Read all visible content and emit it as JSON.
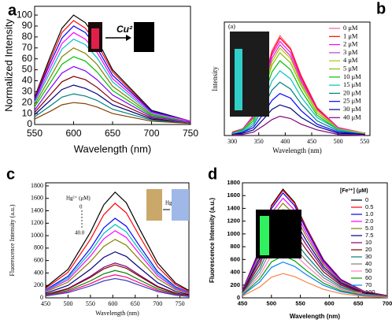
{
  "chart_data": [
    {
      "type": "line",
      "title": "a",
      "x_label": "Wavelength (nm)",
      "y_label": "Normalized Intensity",
      "annotations": [
        "Cu²⁺"
      ],
      "x": [
        550,
        570,
        585,
        600,
        615,
        630,
        650,
        700,
        750
      ],
      "xlim": [
        550,
        750
      ],
      "xticks": [
        550,
        600,
        650,
        700,
        750
      ],
      "ylim": [
        0,
        108
      ],
      "yticks": [
        0,
        10,
        20,
        30,
        40,
        50,
        60,
        70,
        80,
        90,
        100
      ],
      "series": [
        {
          "color": "#000000",
          "values": [
            25,
            62,
            88,
            100,
            93,
            78,
            50,
            13,
            3
          ]
        },
        {
          "color": "#ff0000",
          "values": [
            24,
            59,
            84,
            95,
            88,
            74,
            48,
            12,
            3
          ]
        },
        {
          "color": "#0000ff",
          "values": [
            23,
            56,
            79,
            90,
            84,
            70,
            45,
            12,
            3
          ]
        },
        {
          "color": "#ff00ff",
          "values": [
            21,
            52,
            74,
            84,
            78,
            66,
            42,
            11,
            3
          ]
        },
        {
          "color": "#00c0c0",
          "values": [
            20,
            48,
            69,
            78,
            73,
            61,
            39,
            10,
            2
          ]
        },
        {
          "color": "#808000",
          "values": [
            18,
            43,
            62,
            70,
            65,
            55,
            35,
            9,
            2
          ]
        },
        {
          "color": "#00c000",
          "values": [
            16,
            38,
            55,
            62,
            58,
            48,
            31,
            8,
            2
          ]
        },
        {
          "color": "#8000ff",
          "values": [
            13,
            33,
            47,
            53,
            49,
            41,
            27,
            7,
            2
          ]
        },
        {
          "color": "#800000",
          "values": [
            11,
            27,
            39,
            44,
            41,
            34,
            22,
            6,
            1
          ]
        },
        {
          "color": "#000080",
          "values": [
            9,
            22,
            32,
            36,
            33,
            28,
            18,
            5,
            1
          ]
        },
        {
          "color": "#008080",
          "values": [
            7,
            17,
            25,
            28,
            26,
            22,
            14,
            4,
            1
          ]
        },
        {
          "color": "#804000",
          "values": [
            5,
            12,
            18,
            20,
            19,
            16,
            10,
            3,
            1
          ]
        }
      ]
    },
    {
      "type": "line",
      "title": "b",
      "x_label": "Wavelength (nm)",
      "y_label": "Intensity",
      "annotations": [
        "(a)"
      ],
      "x": [
        300,
        320,
        340,
        360,
        375,
        390,
        410,
        430,
        460,
        500,
        550
      ],
      "xlim": [
        285,
        560
      ],
      "xticks": [
        300,
        350,
        400,
        450,
        500,
        550
      ],
      "ylim": [
        0,
        100
      ],
      "series": [
        {
          "name": "0 μM",
          "color": "#ff6080",
          "values": [
            3,
            6,
            18,
            48,
            75,
            88,
            77,
            53,
            25,
            7,
            2
          ]
        },
        {
          "name": "1 μM",
          "color": "#ff0000",
          "values": [
            3,
            6,
            17,
            47,
            73,
            86,
            76,
            52,
            24,
            7,
            2
          ]
        },
        {
          "name": "2 μM",
          "color": "#ff00ff",
          "values": [
            2,
            6,
            17,
            46,
            71,
            83,
            73,
            50,
            23,
            7,
            2
          ]
        },
        {
          "name": "3 μM",
          "color": "#c040c0",
          "values": [
            2,
            6,
            16,
            44,
            68,
            80,
            70,
            48,
            22,
            6,
            2
          ]
        },
        {
          "name": "4 μM",
          "color": "#c0c000",
          "values": [
            2,
            5,
            15,
            42,
            65,
            77,
            68,
            46,
            22,
            6,
            2
          ]
        },
        {
          "name": "5 μM",
          "color": "#80c000",
          "values": [
            2,
            5,
            15,
            40,
            62,
            73,
            64,
            44,
            20,
            6,
            1
          ]
        },
        {
          "name": "10 μM",
          "color": "#00c000",
          "values": [
            2,
            5,
            13,
            36,
            56,
            66,
            58,
            40,
            18,
            5,
            1
          ]
        },
        {
          "name": "15 μM",
          "color": "#00c0c0",
          "values": [
            2,
            4,
            11,
            31,
            48,
            57,
            50,
            34,
            16,
            5,
            1
          ]
        },
        {
          "name": "20 μM",
          "color": "#008080",
          "values": [
            1,
            3,
            9,
            26,
            40,
            47,
            41,
            28,
            13,
            4,
            1
          ]
        },
        {
          "name": "25 μM",
          "color": "#0000ff",
          "values": [
            1,
            3,
            7,
            20,
            31,
            37,
            33,
            22,
            10,
            3,
            1
          ]
        },
        {
          "name": "30 μM",
          "color": "#000080",
          "values": [
            1,
            2,
            5,
            15,
            23,
            27,
            24,
            16,
            8,
            2,
            1
          ]
        },
        {
          "name": "40 μM",
          "color": "#800080",
          "values": [
            1,
            1,
            3,
            9,
            14,
            17,
            15,
            10,
            5,
            1,
            0
          ]
        }
      ]
    },
    {
      "type": "line",
      "title": "c",
      "x_label": "Wavelength (nm)",
      "y_label": "Fluorescence Intensity (a.u.)",
      "annotations": [
        "Hg²⁺ (μM)",
        "0",
        "40.0",
        "Hg²⁺"
      ],
      "x": [
        450,
        500,
        550,
        580,
        605,
        630,
        660,
        700,
        740,
        770
      ],
      "xlim": [
        450,
        770
      ],
      "xticks": [
        450,
        500,
        550,
        600,
        650,
        700,
        750
      ],
      "ylim": [
        0,
        1850
      ],
      "yticks": [
        0,
        200,
        400,
        600,
        800,
        1000,
        1200,
        1400,
        1600,
        1800
      ],
      "series": [
        {
          "color": "#000000",
          "values": [
            170,
            459,
            1054,
            1496,
            1700,
            1530,
            1105,
            561,
            238,
            119
          ]
        },
        {
          "color": "#ff0000",
          "values": [
            152,
            410,
            942,
            1338,
            1520,
            1368,
            988,
            502,
            213,
            106
          ]
        },
        {
          "color": "#0000ff",
          "values": [
            128,
            346,
            794,
            1126,
            1280,
            1152,
            832,
            422,
            179,
            90
          ]
        },
        {
          "color": "#00c0c0",
          "values": [
            118,
            319,
            732,
            1038,
            1180,
            1062,
            767,
            389,
            165,
            83
          ]
        },
        {
          "color": "#ff00ff",
          "values": [
            108,
            292,
            670,
            950,
            1080,
            972,
            702,
            356,
            151,
            76
          ]
        },
        {
          "color": "#808000",
          "values": [
            94,
            254,
            583,
            827,
            940,
            846,
            611,
            310,
            132,
            66
          ]
        },
        {
          "color": "#000080",
          "values": [
            74,
            200,
            459,
            651,
            740,
            666,
            481,
            244,
            104,
            52
          ]
        },
        {
          "color": "#800080",
          "values": [
            56,
            151,
            347,
            493,
            560,
            504,
            364,
            185,
            78,
            39
          ]
        },
        {
          "color": "#800000",
          "values": [
            53,
            143,
            329,
            466,
            530,
            477,
            345,
            175,
            74,
            37
          ]
        },
        {
          "color": "#008000",
          "values": [
            44,
            119,
            273,
            387,
            440,
            396,
            286,
            145,
            62,
            31
          ]
        },
        {
          "color": "#ff0080",
          "values": [
            37,
            100,
            229,
            326,
            370,
            333,
            241,
            122,
            52,
            26
          ]
        },
        {
          "color": "#4040c0",
          "values": [
            31,
            84,
            192,
            273,
            310,
            279,
            202,
            102,
            43,
            22
          ]
        }
      ]
    },
    {
      "type": "line",
      "title": "d",
      "x_label": "Wavelength (nm)",
      "y_label": "Fluorescence Intensity (a.u.)",
      "legend_title": "[Fe³⁺] (μM)",
      "x": [
        450,
        480,
        500,
        520,
        540,
        560,
        590,
        620,
        660,
        700
      ],
      "xlim": [
        450,
        700
      ],
      "xticks": [
        450,
        500,
        550,
        600,
        650,
        700
      ],
      "ylim": [
        0,
        1800
      ],
      "yticks": [
        0,
        200,
        400,
        600,
        800,
        1000,
        1200,
        1400,
        1600,
        1800
      ],
      "series": [
        {
          "name": "0",
          "color": "#000000",
          "values": [
            119,
            765,
            1445,
            1700,
            1496,
            1105,
            595,
            289,
            102,
            34
          ]
        },
        {
          "name": "0.5",
          "color": "#ff0000",
          "values": [
            118,
            756,
            1428,
            1680,
            1478,
            1092,
            588,
            286,
            101,
            34
          ]
        },
        {
          "name": "1.0",
          "color": "#0000ff",
          "values": [
            115,
            738,
            1394,
            1640,
            1443,
            1066,
            574,
            279,
            98,
            33
          ]
        },
        {
          "name": "2.0",
          "color": "#ff00ff",
          "values": [
            109,
            702,
            1326,
            1560,
            1373,
            1014,
            546,
            265,
            94,
            31
          ]
        },
        {
          "name": "5.0",
          "color": "#808000",
          "values": [
            104,
            666,
            1258,
            1480,
            1302,
            962,
            518,
            252,
            89,
            30
          ]
        },
        {
          "name": "7.5",
          "color": "#000080",
          "values": [
            97,
            621,
            1173,
            1380,
            1214,
            897,
            483,
            235,
            83,
            28
          ]
        },
        {
          "name": "10",
          "color": "#800080",
          "values": [
            90,
            576,
            1088,
            1280,
            1126,
            832,
            448,
            218,
            77,
            26
          ]
        },
        {
          "name": "20",
          "color": "#800000",
          "values": [
            81,
            522,
            986,
            1160,
            1021,
            754,
            406,
            197,
            70,
            23
          ]
        },
        {
          "name": "30",
          "color": "#008080",
          "values": [
            71,
            459,
            867,
            1020,
            898,
            663,
            357,
            173,
            61,
            20
          ]
        },
        {
          "name": "40",
          "color": "#808080",
          "values": [
            63,
            405,
            765,
            900,
            792,
            585,
            315,
            153,
            54,
            18
          ]
        },
        {
          "name": "50",
          "color": "#ff80c0",
          "values": [
            55,
            351,
            663,
            780,
            686,
            507,
            273,
            133,
            47,
            16
          ]
        },
        {
          "name": "60",
          "color": "#00a000",
          "values": [
            46,
            297,
            561,
            660,
            581,
            429,
            231,
            112,
            40,
            13
          ]
        },
        {
          "name": "70",
          "color": "#0080ff",
          "values": [
            39,
            252,
            476,
            560,
            493,
            364,
            196,
            95,
            34,
            11
          ]
        },
        {
          "name": "100",
          "color": "#ff8040",
          "values": [
            27,
            171,
            323,
            380,
            334,
            247,
            133,
            65,
            23,
            8
          ]
        }
      ]
    }
  ]
}
